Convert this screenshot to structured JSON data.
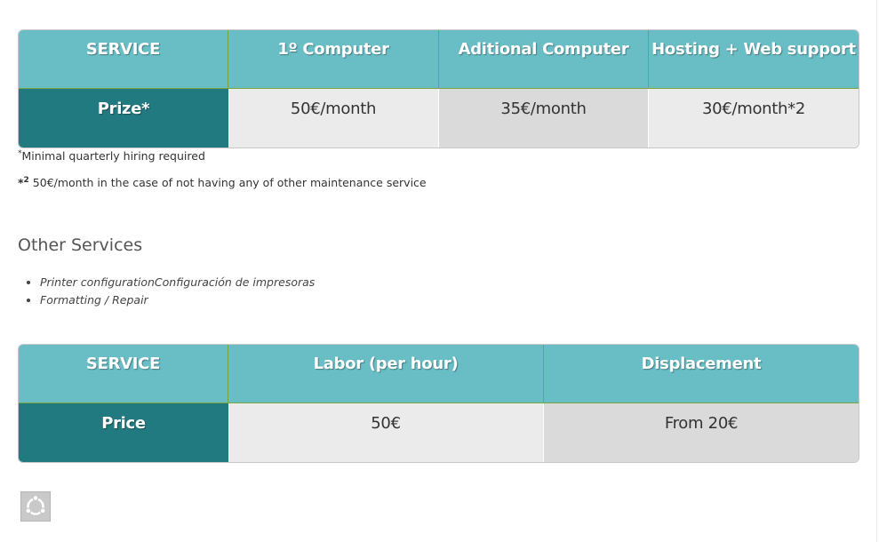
{
  "table1": {
    "headers": [
      "SERVICE",
      "1º Computer",
      "Aditional Computer",
      "Hosting + Web support"
    ],
    "row_label": "Prize*",
    "values": [
      "50€/month",
      "35€/month",
      "30€/month*2"
    ]
  },
  "notes": {
    "note1_mark": "*",
    "note1_text": "Minimal quarterly hiring required",
    "note2_mark": "*",
    "note2_sup": "2",
    "note2_text": " 50€/month in the case of not having any of other maintenance service"
  },
  "other_services": {
    "title": "Other Services",
    "items": [
      "Printer configurationConfiguración de impresoras",
      "Formatting / Repair"
    ]
  },
  "table2": {
    "headers": [
      "SERVICE",
      "Labor (per hour)",
      "Displacement"
    ],
    "row_label": "Price",
    "values": [
      "50€",
      "From 20€"
    ]
  },
  "colors": {
    "header_bg": "#69bdc5",
    "row_label_bg": "#217a80",
    "cell_light": "#ebebeb",
    "cell_dark": "#dadada"
  },
  "icons": {
    "logo": "ubuntu-logo-icon"
  }
}
